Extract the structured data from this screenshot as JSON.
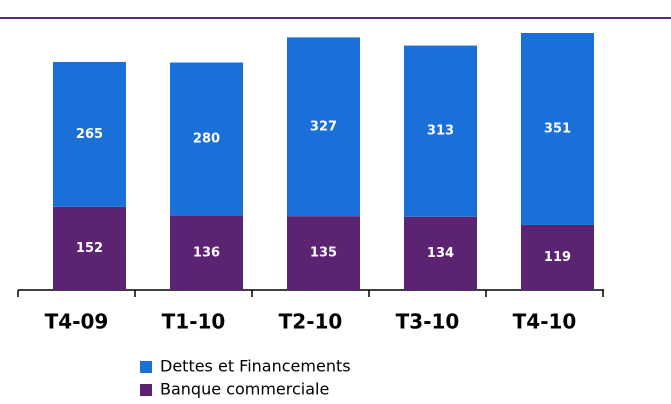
{
  "chart_data": {
    "type": "stacked-bar",
    "categories": [
      "T4-09",
      "T1-10",
      "T2-10",
      "T3-10",
      "T4-10"
    ],
    "series": [
      {
        "name": "Banque commerciale",
        "color": "#5b2372",
        "values": [
          152,
          136,
          135,
          134,
          119
        ]
      },
      {
        "name": "Dettes et Financements",
        "color": "#1a6fd9",
        "values": [
          265,
          280,
          327,
          313,
          351
        ]
      }
    ]
  }
}
